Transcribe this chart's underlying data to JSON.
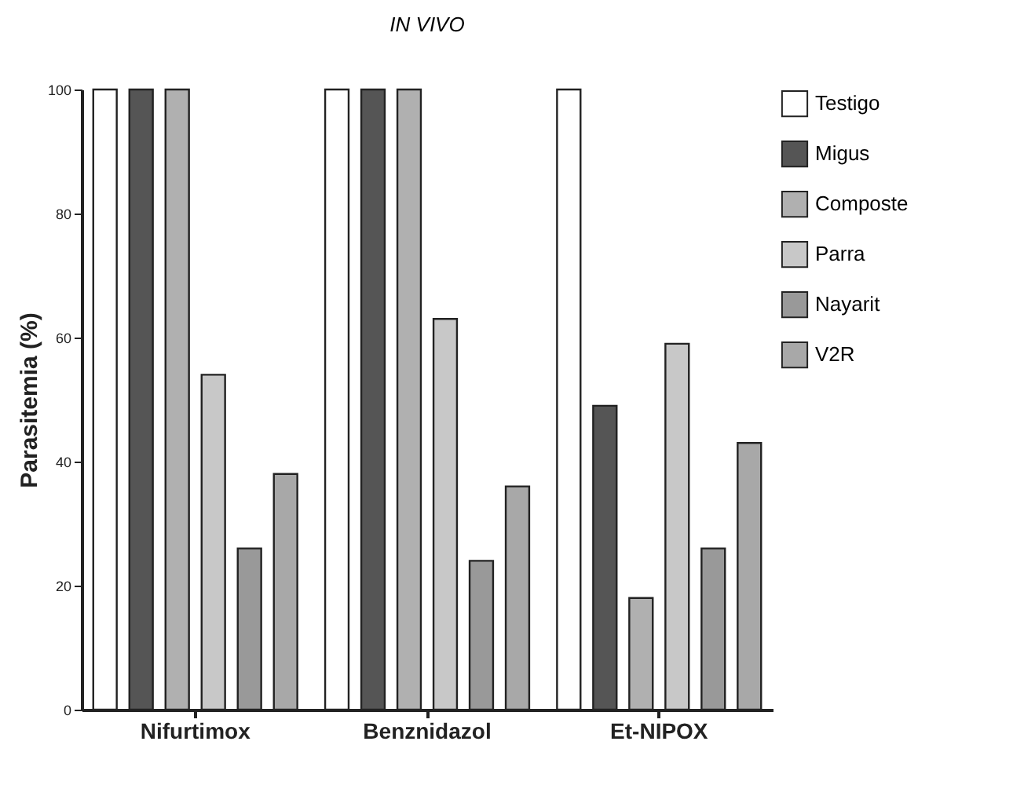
{
  "chart_data": {
    "type": "bar",
    "title": "IN VIVO",
    "ylabel": "Parasitemia (%)",
    "categories": [
      "Nifurtimox",
      "Benznidazol",
      "Et-NIPOX"
    ],
    "series": [
      {
        "name": "Testigo",
        "color": "#ffffff",
        "values": [
          100,
          100,
          100
        ]
      },
      {
        "name": "Migus",
        "color": "#555555",
        "values": [
          100,
          100,
          49
        ]
      },
      {
        "name": "Composte",
        "color": "#b0b0b0",
        "values": [
          100,
          100,
          18
        ]
      },
      {
        "name": "Parra",
        "color": "#c8c8c8",
        "values": [
          54,
          63,
          59
        ]
      },
      {
        "name": "Nayarit",
        "color": "#999999",
        "values": [
          26,
          24,
          26
        ]
      },
      {
        "name": "V2R",
        "color": "#a8a8a8",
        "values": [
          38,
          36,
          43
        ]
      }
    ],
    "ylim": [
      0,
      100
    ],
    "yticks": [
      0,
      20,
      40,
      60,
      80,
      100
    ],
    "legend": "top right",
    "grid": false
  }
}
